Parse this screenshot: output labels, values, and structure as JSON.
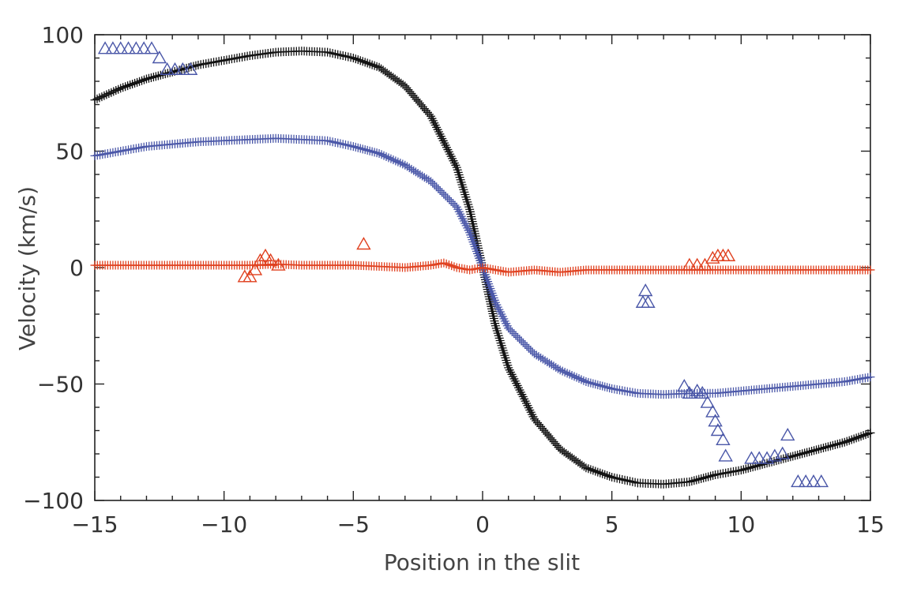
{
  "chart_data": {
    "type": "scatter",
    "title": "",
    "xlabel": "Position in the slit",
    "ylabel": "Velocity (km/s)",
    "xlim": [
      -15,
      15
    ],
    "ylim": [
      -100,
      100
    ],
    "grid": false,
    "x_ticks": [
      -15,
      -10,
      -5,
      0,
      5,
      10,
      15
    ],
    "x_tick_labels": [
      "−15",
      "−10",
      "−5",
      "0",
      "5",
      "10",
      "15"
    ],
    "y_ticks": [
      -100,
      -50,
      0,
      50,
      100
    ],
    "y_tick_labels": [
      "−100",
      "−50",
      "0",
      "50",
      "100"
    ],
    "colors": {
      "black": "#111111",
      "blue": "#4a57a8",
      "red": "#e0401f",
      "axis": "#222222"
    },
    "series": [
      {
        "name": "black-plus",
        "marker": "plus",
        "color": "#111111",
        "points": [
          [
            -15,
            72
          ],
          [
            -14,
            77
          ],
          [
            -13,
            81
          ],
          [
            -12,
            84
          ],
          [
            -11,
            87
          ],
          [
            -10,
            89
          ],
          [
            -9,
            91
          ],
          [
            -8,
            92.5
          ],
          [
            -7,
            93
          ],
          [
            -6,
            92.5
          ],
          [
            -5,
            90
          ],
          [
            -4,
            86
          ],
          [
            -3,
            78
          ],
          [
            -2,
            65
          ],
          [
            -1,
            43
          ],
          [
            -0.5,
            25
          ],
          [
            0,
            0
          ],
          [
            0.5,
            -25
          ],
          [
            1,
            -43
          ],
          [
            2,
            -65
          ],
          [
            3,
            -78
          ],
          [
            4,
            -86
          ],
          [
            5,
            -90
          ],
          [
            6,
            -92.5
          ],
          [
            7,
            -93
          ],
          [
            8,
            -92
          ],
          [
            9,
            -89
          ],
          [
            10,
            -87
          ],
          [
            11,
            -84
          ],
          [
            12,
            -81
          ],
          [
            13,
            -78
          ],
          [
            14,
            -75
          ],
          [
            15,
            -71
          ]
        ]
      },
      {
        "name": "blue-plus",
        "marker": "plus",
        "color": "#4a57a8",
        "points": [
          [
            -15,
            48
          ],
          [
            -14,
            50
          ],
          [
            -13,
            52
          ],
          [
            -12,
            53
          ],
          [
            -11,
            54
          ],
          [
            -10,
            54.5
          ],
          [
            -9,
            55
          ],
          [
            -8,
            55.5
          ],
          [
            -7,
            55
          ],
          [
            -6,
            54.5
          ],
          [
            -5,
            52
          ],
          [
            -4,
            49
          ],
          [
            -3,
            44
          ],
          [
            -2,
            37
          ],
          [
            -1,
            26
          ],
          [
            -0.5,
            15
          ],
          [
            0,
            0
          ],
          [
            0.5,
            -15
          ],
          [
            1,
            -26
          ],
          [
            2,
            -37
          ],
          [
            3,
            -44
          ],
          [
            4,
            -49
          ],
          [
            5,
            -52
          ],
          [
            6,
            -54
          ],
          [
            7,
            -54.5
          ],
          [
            8,
            -54
          ],
          [
            9,
            -54
          ],
          [
            10,
            -53
          ],
          [
            11,
            -52
          ],
          [
            12,
            -51
          ],
          [
            13,
            -50
          ],
          [
            14,
            -49
          ],
          [
            15,
            -47
          ]
        ]
      },
      {
        "name": "red-plus",
        "marker": "plus",
        "color": "#e0401f",
        "points": [
          [
            -15,
            1
          ],
          [
            -14,
            1
          ],
          [
            -13,
            1
          ],
          [
            -12,
            1
          ],
          [
            -11,
            1
          ],
          [
            -10,
            1
          ],
          [
            -9,
            1
          ],
          [
            -8,
            1.5
          ],
          [
            -7,
            1
          ],
          [
            -6,
            1
          ],
          [
            -5,
            1
          ],
          [
            -4,
            0.5
          ],
          [
            -3,
            0
          ],
          [
            -2,
            1
          ],
          [
            -1.5,
            2
          ],
          [
            -1,
            0
          ],
          [
            -0.5,
            -1
          ],
          [
            0,
            0
          ],
          [
            0.5,
            -1
          ],
          [
            1,
            -2
          ],
          [
            2,
            -1
          ],
          [
            3,
            -2
          ],
          [
            4,
            -1
          ],
          [
            5,
            -1
          ],
          [
            6,
            -1
          ],
          [
            7,
            -1
          ],
          [
            8,
            -1
          ],
          [
            9,
            -1
          ],
          [
            10,
            -1
          ],
          [
            11,
            -1
          ],
          [
            12,
            -1
          ],
          [
            13,
            -1
          ],
          [
            14,
            -1
          ],
          [
            15,
            -1
          ]
        ]
      },
      {
        "name": "blue-triangles",
        "marker": "triangle",
        "color": "#4a57a8",
        "points": [
          [
            -14.6,
            94
          ],
          [
            -14.3,
            94
          ],
          [
            -14.0,
            94
          ],
          [
            -13.7,
            94
          ],
          [
            -13.4,
            94
          ],
          [
            -13.1,
            94
          ],
          [
            -12.8,
            94
          ],
          [
            -12.5,
            90
          ],
          [
            -12.2,
            85
          ],
          [
            -11.9,
            85
          ],
          [
            -11.6,
            85
          ],
          [
            -11.3,
            85
          ],
          [
            6.3,
            -10
          ],
          [
            6.2,
            -15
          ],
          [
            6.4,
            -15
          ],
          [
            7.8,
            -51
          ],
          [
            8.0,
            -54
          ],
          [
            8.3,
            -53
          ],
          [
            8.5,
            -54
          ],
          [
            8.7,
            -58
          ],
          [
            8.9,
            -62
          ],
          [
            9.0,
            -66
          ],
          [
            9.1,
            -70
          ],
          [
            9.3,
            -74
          ],
          [
            9.4,
            -81
          ],
          [
            10.4,
            -82
          ],
          [
            10.7,
            -82
          ],
          [
            11.0,
            -82
          ],
          [
            11.3,
            -81
          ],
          [
            11.6,
            -80
          ],
          [
            11.8,
            -72
          ],
          [
            12.2,
            -92
          ],
          [
            12.5,
            -92
          ],
          [
            12.8,
            -92
          ],
          [
            13.1,
            -92
          ]
        ]
      },
      {
        "name": "red-triangles",
        "marker": "triangle",
        "color": "#e0401f",
        "points": [
          [
            -9.2,
            -4
          ],
          [
            -9.0,
            -4
          ],
          [
            -8.8,
            -1
          ],
          [
            -8.6,
            3
          ],
          [
            -8.4,
            5
          ],
          [
            -8.2,
            3
          ],
          [
            -7.9,
            1
          ],
          [
            -4.6,
            10
          ],
          [
            8.0,
            1
          ],
          [
            8.3,
            1
          ],
          [
            8.6,
            1
          ],
          [
            8.9,
            4
          ],
          [
            9.1,
            5
          ],
          [
            9.3,
            5
          ],
          [
            9.5,
            5
          ]
        ]
      }
    ]
  }
}
